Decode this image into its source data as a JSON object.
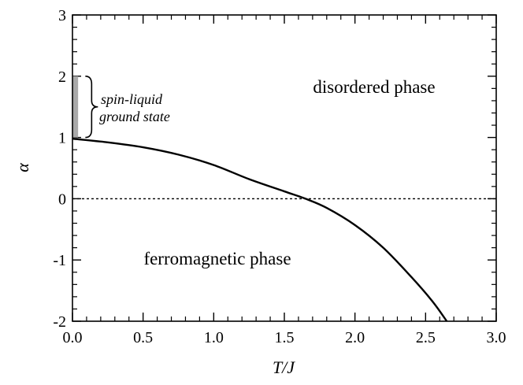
{
  "chart_data": {
    "type": "line",
    "xlabel": "T/J",
    "ylabel": "α",
    "xlim": [
      0.0,
      3.0
    ],
    "ylim": [
      -2,
      3
    ],
    "x_ticks": [
      0.0,
      0.5,
      1.0,
      1.5,
      2.0,
      2.5,
      3.0
    ],
    "x_tick_labels": [
      "0.0",
      "0.5",
      "1.0",
      "1.5",
      "2.0",
      "2.5",
      "3.0"
    ],
    "x_minor_step": 0.1,
    "y_ticks": [
      -2,
      -1,
      0,
      1,
      2,
      3
    ],
    "y_tick_labels": [
      "-2",
      "-1",
      "0",
      "1",
      "2",
      "3"
    ],
    "y_minor_step": 0.2,
    "grid": false,
    "series": [
      {
        "name": "phase boundary",
        "style": "solid",
        "x": [
          0.0,
          0.25,
          0.5,
          0.75,
          1.0,
          1.25,
          1.5,
          1.65,
          1.8,
          2.0,
          2.2,
          2.4,
          2.55,
          2.65
        ],
        "y": [
          0.98,
          0.92,
          0.84,
          0.72,
          0.55,
          0.32,
          0.12,
          0.0,
          -0.15,
          -0.43,
          -0.8,
          -1.28,
          -1.68,
          -2.0
        ]
      },
      {
        "name": "alpha = 0 reference",
        "style": "dotted",
        "x": [
          0.0,
          3.0
        ],
        "y": [
          0,
          0
        ]
      }
    ],
    "shaded_region": {
      "x": [
        0.0,
        0.04
      ],
      "y": [
        1.0,
        2.0
      ],
      "color": "#a9a9a9"
    },
    "annotations": {
      "disordered": "disordered phase",
      "ferromagnetic": "ferromagnetic phase",
      "spin_liquid_line1": "spin-liquid",
      "spin_liquid_line2": "ground state"
    },
    "colors": {
      "line": "#000000",
      "shade": "#a9a9a9",
      "background": "#ffffff"
    }
  }
}
